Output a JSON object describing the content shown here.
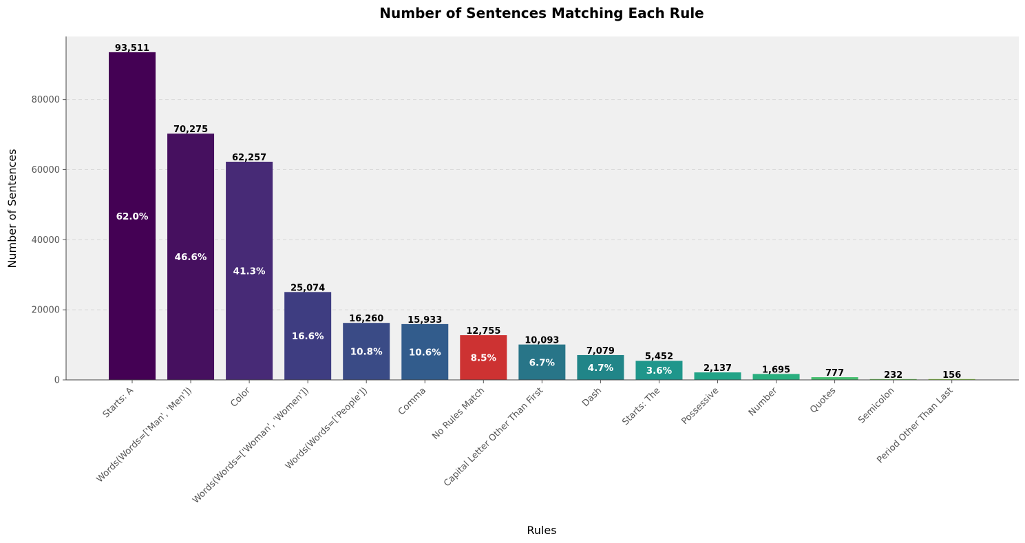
{
  "chart_data": {
    "type": "bar",
    "title": "Number of Sentences Matching Each Rule",
    "xlabel": "Rules",
    "ylabel": "Number of Sentences",
    "ylim": [
      0,
      98000
    ],
    "yticks": [
      0,
      20000,
      40000,
      60000,
      80000
    ],
    "grid": "horizontal dashed",
    "categories": [
      "Starts: A",
      "Words(Words=['Man', 'Men'])",
      "Color",
      "Words(Words=['Woman', 'Women'])",
      "Words(Words=['People'])",
      "Comma",
      "No Rules Match",
      "Capital Letter Other Than First",
      "Dash",
      "Starts: The",
      "Possessive",
      "Number",
      "Quotes",
      "Semicolon",
      "Period Other Than Last"
    ],
    "values": [
      93511,
      70275,
      62257,
      25074,
      16260,
      15933,
      12755,
      10093,
      7079,
      5452,
      2137,
      1695,
      777,
      232,
      156
    ],
    "value_labels": [
      "93,511",
      "70,275",
      "62,257",
      "25,074",
      "16,260",
      "15,933",
      "12,755",
      "10,093",
      "7,079",
      "5,452",
      "2,137",
      "1,695",
      "777",
      "232",
      "156"
    ],
    "percent_labels": [
      "62.0%",
      "46.6%",
      "41.3%",
      "16.6%",
      "10.8%",
      "10.6%",
      "8.5%",
      "6.7%",
      "4.7%",
      "3.6%",
      "",
      "",
      "",
      "",
      ""
    ],
    "colors": [
      "#440154",
      "#46105f",
      "#472a76",
      "#3e3d81",
      "#3a4b86",
      "#325c8c",
      "#cd3232",
      "#287588",
      "#218588",
      "#1f968b",
      "#22a387",
      "#2aaf7f",
      "#47bf70",
      "#6ccd59",
      "#90d743"
    ]
  }
}
